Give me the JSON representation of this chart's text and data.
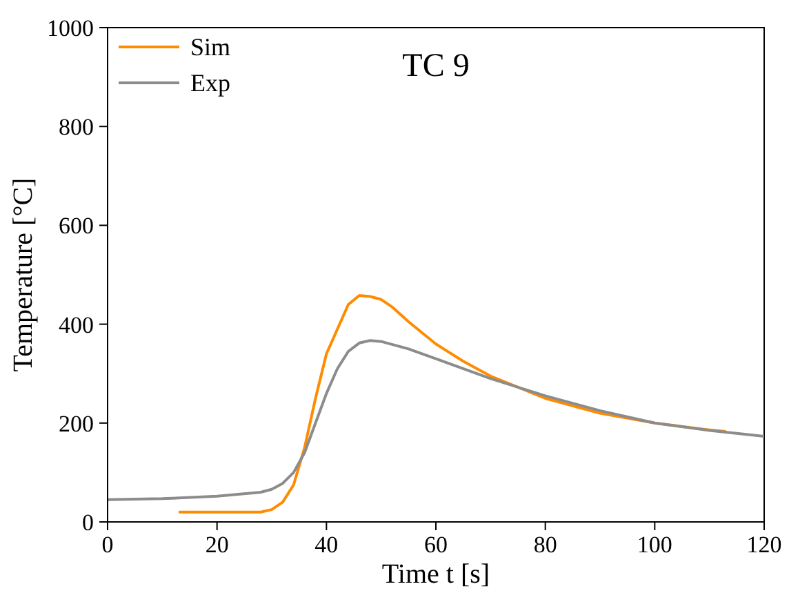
{
  "chart_data": {
    "type": "line",
    "title": "TC 9",
    "xlabel": "Time t [s]",
    "ylabel": "Temperature [°C]",
    "xlim": [
      0,
      120
    ],
    "xticks": [
      0,
      20,
      40,
      60,
      80,
      100,
      120
    ],
    "ylim": [
      0,
      1000
    ],
    "yticks": [
      0,
      200,
      400,
      600,
      800,
      1000
    ],
    "grid": false,
    "legend": "top left",
    "marker": "none",
    "line_style": "solid",
    "series": [
      {
        "name": "Sim",
        "color": "#ff8c00",
        "x": [
          13,
          20,
          28,
          30,
          32,
          34,
          36,
          38,
          40,
          42,
          44,
          46,
          47,
          48,
          50,
          52,
          55,
          60,
          65,
          70,
          80,
          90,
          100,
          110,
          113
        ],
        "values": [
          20,
          20,
          20,
          25,
          40,
          75,
          150,
          250,
          340,
          390,
          440,
          458,
          457,
          456,
          450,
          435,
          405,
          360,
          325,
          295,
          250,
          220,
          200,
          186,
          183
        ]
      },
      {
        "name": "Exp",
        "color": "#8c8c8c",
        "x": [
          0,
          10,
          20,
          28,
          30,
          32,
          34,
          36,
          38,
          40,
          42,
          44,
          46,
          48,
          50,
          55,
          60,
          70,
          80,
          90,
          100,
          110,
          120
        ],
        "values": [
          45,
          47,
          52,
          60,
          66,
          78,
          100,
          140,
          200,
          260,
          310,
          345,
          362,
          367,
          365,
          350,
          330,
          290,
          255,
          225,
          200,
          185,
          173
        ]
      }
    ]
  }
}
